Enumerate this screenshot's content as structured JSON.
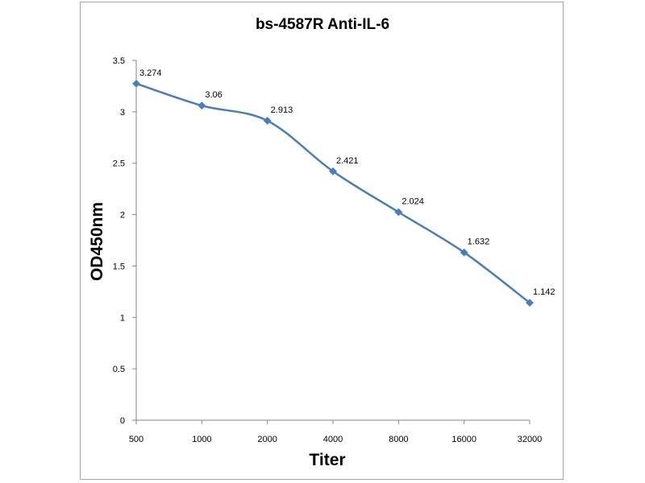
{
  "chart_data": {
    "type": "line",
    "title": "bs-4587R Anti-IL-6",
    "xlabel": "Titer",
    "ylabel": "OD450nm",
    "categories": [
      "500",
      "1000",
      "2000",
      "4000",
      "8000",
      "16000",
      "32000"
    ],
    "series": [
      {
        "name": "OD450nm",
        "values": [
          3.274,
          3.06,
          2.913,
          2.421,
          2.024,
          1.632,
          1.142
        ],
        "labels": [
          "3.274",
          "3.06",
          "2.913",
          "2.421",
          "2.024",
          "1.632",
          "1.142"
        ],
        "color": "#4a7ebb"
      }
    ],
    "ylim": [
      0,
      3.5
    ],
    "yticks": [
      "0",
      "0.5",
      "1",
      "1.5",
      "2",
      "2.5",
      "3",
      "3.5"
    ],
    "ytick_values": [
      0,
      0.5,
      1,
      1.5,
      2,
      2.5,
      3,
      3.5
    ],
    "grid": false,
    "legend": "none"
  }
}
